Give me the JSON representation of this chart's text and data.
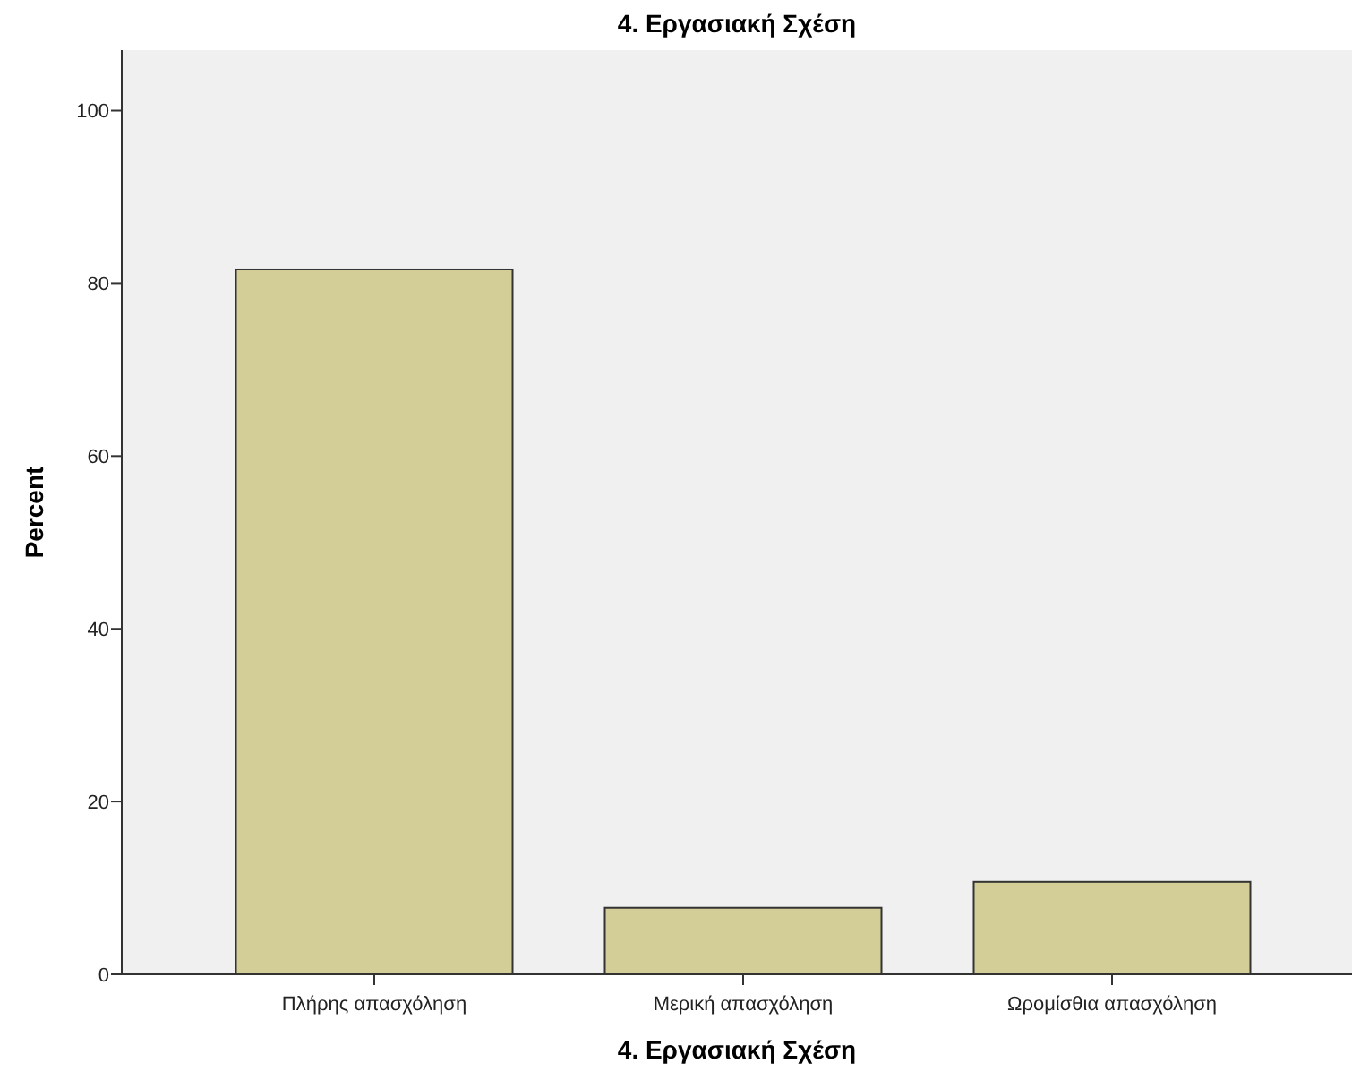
{
  "chart_data": {
    "type": "bar",
    "title": "4. Εργασιακή Σχέση",
    "xlabel": "4. Εργασιακή Σχέση",
    "ylabel": "Percent",
    "categories": [
      "Πλήρης απασχόληση",
      "Μερική απασχόληση",
      "Ωρομίσθια απασχόληση"
    ],
    "values": [
      81.6,
      7.7,
      10.7
    ],
    "color": "#d3ce97",
    "ylim": [
      0,
      107
    ],
    "yticks": [
      0,
      20,
      40,
      60,
      80,
      100
    ],
    "grid": false
  }
}
